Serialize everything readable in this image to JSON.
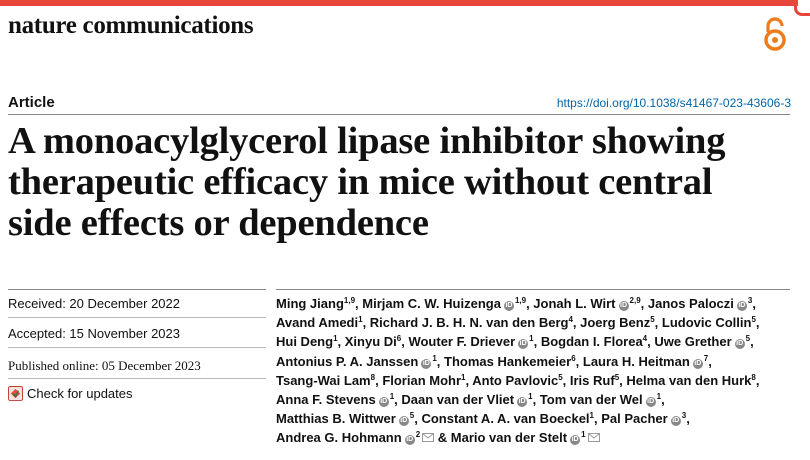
{
  "header": {
    "journal": "nature communications",
    "article_type": "Article",
    "doi": "https://doi.org/10.1038/s41467-023-43606-3"
  },
  "title_lines": [
    "A monoacylglycerol lipase inhibitor showing",
    "therapeutic efficacy in mice without central",
    "side effects or dependence"
  ],
  "dates": {
    "received": "Received: 20 December 2022",
    "accepted": "Accepted: 15 November 2023",
    "published": "Published online: 05 December 2023"
  },
  "check_updates": "Check for updates",
  "author_lines": [
    [
      {
        "n": "Ming Jiang",
        "s": "1,9"
      },
      {
        "n": "Mirjam C. W. Huizenga",
        "s": "1,9",
        "o": true
      },
      {
        "n": "Jonah L. Wirt",
        "s": "2,9",
        "o": true
      },
      {
        "n": "Janos Paloczi",
        "s": "3",
        "o": true,
        "end": ","
      }
    ],
    [
      {
        "n": "Avand Amedi",
        "s": "1"
      },
      {
        "n": "Richard J. B. H. N. van den Berg",
        "s": "4"
      },
      {
        "n": "Joerg Benz",
        "s": "5"
      },
      {
        "n": "Ludovic Collin",
        "s": "5",
        "end": ","
      }
    ],
    [
      {
        "n": "Hui Deng",
        "s": "1"
      },
      {
        "n": "Xinyu Di",
        "s": "6"
      },
      {
        "n": "Wouter F. Driever",
        "s": "1",
        "o": true
      },
      {
        "n": "Bogdan I. Florea",
        "s": "4"
      },
      {
        "n": "Uwe Grether",
        "s": "5",
        "o": true,
        "end": ","
      }
    ],
    [
      {
        "n": "Antonius P. A. Janssen",
        "s": "1",
        "o": true
      },
      {
        "n": "Thomas Hankemeier",
        "s": "6"
      },
      {
        "n": "Laura H. Heitman",
        "s": "7",
        "o": true,
        "end": ","
      }
    ],
    [
      {
        "n": "Tsang-Wai Lam",
        "s": "8"
      },
      {
        "n": "Florian Mohr",
        "s": "1"
      },
      {
        "n": "Anto Pavlovic",
        "s": "5"
      },
      {
        "n": "Iris Ruf",
        "s": "5"
      },
      {
        "n": "Helma van den Hurk",
        "s": "8",
        "end": ","
      }
    ],
    [
      {
        "n": "Anna F. Stevens",
        "s": "1",
        "o": true
      },
      {
        "n": "Daan van der Vliet",
        "s": "1",
        "o": true
      },
      {
        "n": "Tom van der Wel",
        "s": "1",
        "o": true,
        "end": ","
      }
    ],
    [
      {
        "n": "Matthias B. Wittwer",
        "s": "5",
        "o": true
      },
      {
        "n": "Constant A. A. van Boeckel",
        "s": "1"
      },
      {
        "n": "Pal Pacher",
        "s": "3",
        "o": true,
        "end": ","
      }
    ],
    [
      {
        "n": "Andrea G. Hohmann",
        "s": "2",
        "o": true,
        "m": true,
        "end": " &"
      },
      {
        "n": "Mario van der Stelt",
        "s": "1",
        "o": true,
        "m": true,
        "end": ""
      }
    ]
  ]
}
